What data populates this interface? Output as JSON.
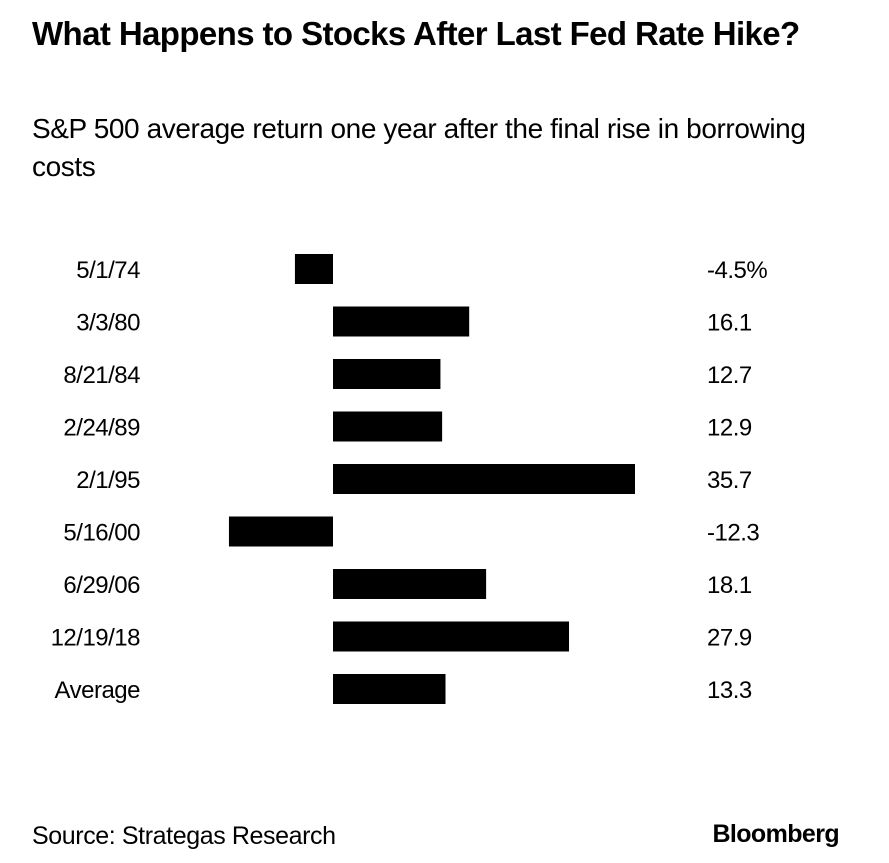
{
  "chart_data": {
    "type": "bar",
    "orientation": "horizontal",
    "title": "What Happens to Stocks After Last Fed Rate Hike?",
    "subtitle": "S&P 500 average return one year after the final rise in borrowing costs",
    "xlabel": "",
    "ylabel": "",
    "categories": [
      "5/1/74",
      "3/3/80",
      "8/21/84",
      "2/24/89",
      "2/1/95",
      "5/16/00",
      "6/29/06",
      "12/19/18",
      "Average"
    ],
    "values": [
      -4.5,
      16.1,
      12.7,
      12.9,
      35.7,
      -12.3,
      18.1,
      27.9,
      13.3
    ],
    "value_labels": [
      "-4.5%",
      "16.1",
      "12.7",
      "12.9",
      "35.7",
      "-12.3",
      "18.1",
      "27.9",
      "13.3"
    ],
    "xlim": [
      -12.3,
      35.7
    ],
    "grid": false,
    "legend": "none",
    "bar_color": "#000000"
  },
  "footer": {
    "source": "Source: Strategas Research",
    "brand": "Bloomberg"
  }
}
